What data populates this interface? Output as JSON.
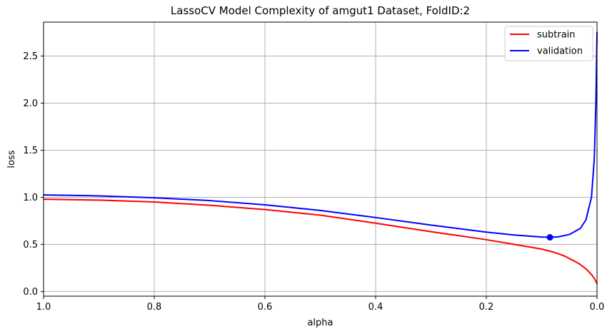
{
  "chart_data": {
    "type": "line",
    "title": "LassoCV Model Complexity of amgut1 Dataset, FoldID:2",
    "xlabel": "alpha",
    "ylabel": "loss",
    "xlim": [
      1.0,
      0.0
    ],
    "ylim": [
      -0.05,
      2.86
    ],
    "x_inverted": true,
    "grid": true,
    "legend_position": "top-right",
    "x_ticks": [
      1.0,
      0.8,
      0.6,
      0.4,
      0.2,
      0.0
    ],
    "x_tick_labels": [
      "1.0",
      "0.8",
      "0.6",
      "0.4",
      "0.2",
      "0.0"
    ],
    "y_ticks": [
      0.0,
      0.5,
      1.0,
      1.5,
      2.0,
      2.5
    ],
    "y_tick_labels": [
      "0.0",
      "0.5",
      "1.0",
      "1.5",
      "2.0",
      "2.5"
    ],
    "series": [
      {
        "name": "subtrain",
        "color": "#ff0000",
        "x": [
          1.0,
          0.9,
          0.8,
          0.7,
          0.6,
          0.5,
          0.4,
          0.3,
          0.2,
          0.15,
          0.1,
          0.08,
          0.06,
          0.04,
          0.03,
          0.02,
          0.01,
          0.005,
          0.0
        ],
        "y": [
          0.98,
          0.97,
          0.95,
          0.915,
          0.87,
          0.81,
          0.725,
          0.635,
          0.55,
          0.5,
          0.45,
          0.42,
          0.38,
          0.32,
          0.285,
          0.24,
          0.18,
          0.14,
          0.085
        ]
      },
      {
        "name": "validation",
        "color": "#0000ff",
        "x": [
          1.0,
          0.9,
          0.8,
          0.7,
          0.6,
          0.5,
          0.4,
          0.3,
          0.2,
          0.15,
          0.1,
          0.085,
          0.07,
          0.05,
          0.03,
          0.02,
          0.01,
          0.005,
          0.002,
          0.0
        ],
        "y": [
          1.025,
          1.015,
          0.995,
          0.965,
          0.92,
          0.86,
          0.785,
          0.705,
          0.63,
          0.6,
          0.578,
          0.575,
          0.58,
          0.605,
          0.67,
          0.76,
          1.0,
          1.4,
          2.0,
          2.75
        ]
      }
    ],
    "marker": {
      "series": "validation",
      "x": 0.085,
      "y": 0.575,
      "color": "#0000ff"
    }
  }
}
